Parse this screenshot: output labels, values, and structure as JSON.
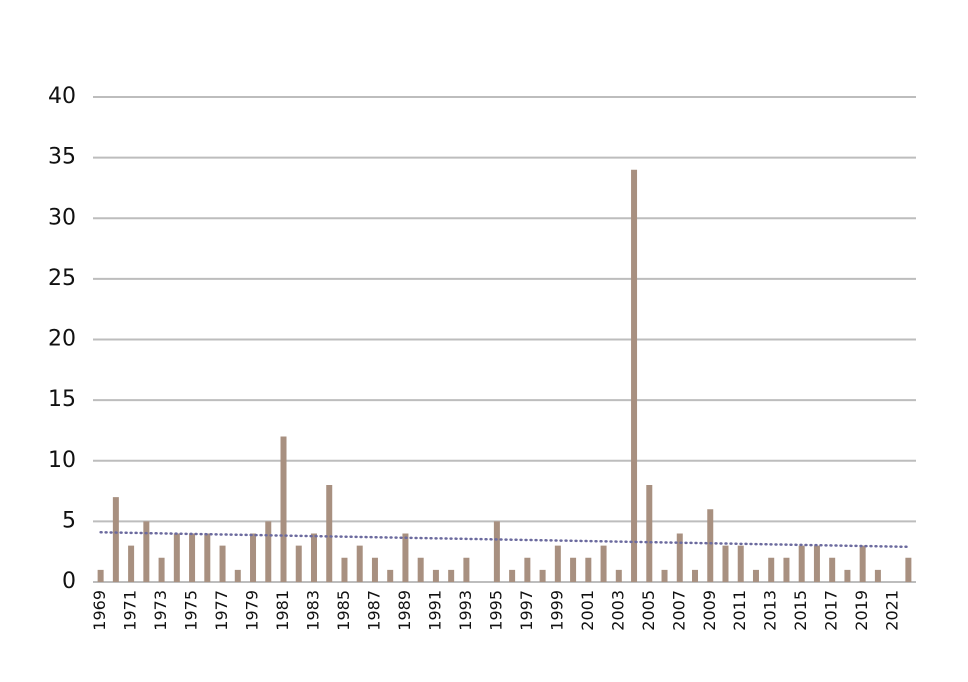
{
  "chart_data": {
    "type": "bar",
    "categories": [
      "1969",
      null,
      "1971",
      null,
      "1973",
      null,
      "1975",
      null,
      "1977",
      null,
      "1979",
      null,
      "1981",
      null,
      "1983",
      null,
      "1985",
      null,
      "1987",
      null,
      "1989",
      null,
      "1991",
      null,
      "1993",
      null,
      "1995",
      null,
      "1997",
      null,
      "1999",
      null,
      "2001",
      null,
      "2003",
      null,
      "2005",
      null,
      "2007",
      null,
      "2009",
      null,
      "2011",
      null,
      "2013",
      null,
      "2015",
      null,
      "2017",
      null,
      "2019",
      null,
      "2021",
      null
    ],
    "values": [
      1,
      7,
      3,
      5,
      2,
      4,
      4,
      4,
      3,
      1,
      4,
      5,
      12,
      3,
      4,
      8,
      2,
      3,
      2,
      1,
      4,
      2,
      1,
      1,
      2,
      0,
      5,
      1,
      2,
      1,
      3,
      2,
      2,
      3,
      1,
      34,
      8,
      1,
      4,
      1,
      6,
      3,
      3,
      1,
      2,
      2,
      3,
      3,
      2,
      1,
      3,
      1,
      0,
      2
    ],
    "color": "#a89080",
    "trendline": {
      "color": "#6b6a9e",
      "values": [
        4.1,
        2.9
      ]
    },
    "ylim": [
      0,
      40
    ],
    "yticks": [
      0,
      5,
      10,
      15,
      20,
      25,
      30,
      35,
      40
    ],
    "grid": true
  }
}
